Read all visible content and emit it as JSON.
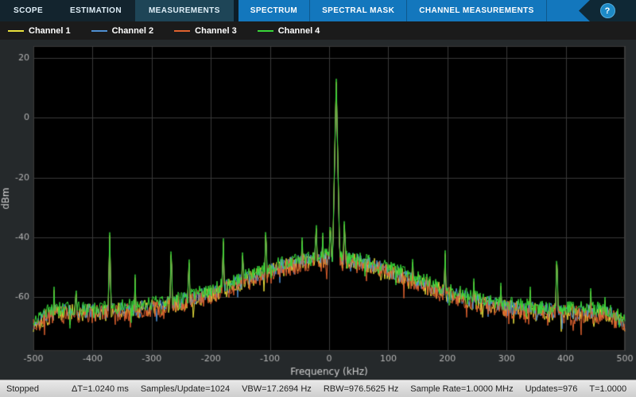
{
  "accent_color": "#1377bd",
  "toolbar": {
    "tabs": [
      {
        "label": "SCOPE"
      },
      {
        "label": "ESTIMATION"
      },
      {
        "label": "MEASUREMENTS"
      }
    ],
    "context_tabs": [
      {
        "label": "SPECTRUM"
      },
      {
        "label": "SPECTRAL MASK"
      },
      {
        "label": "CHANNEL MEASUREMENTS"
      }
    ],
    "help_label": "?"
  },
  "legend": {
    "items": [
      {
        "label": "Channel 1",
        "color": "#e9e13c"
      },
      {
        "label": "Channel 2",
        "color": "#4e8fd2"
      },
      {
        "label": "Channel 3",
        "color": "#e0622f"
      },
      {
        "label": "Channel 4",
        "color": "#39d839"
      }
    ]
  },
  "status": {
    "items": [
      "Stopped",
      "ΔT=1.0240 ms",
      "Samples/Update=1024",
      "VBW=17.2694 Hz",
      "RBW=976.5625 Hz",
      "Sample Rate=1.0000 MHz",
      "Updates=976",
      "T=1.0000"
    ]
  },
  "icons": {
    "grip": "⋮"
  },
  "chart_data": {
    "type": "line",
    "title": "",
    "xlabel": "Frequency (kHz)",
    "ylabel": "dBm",
    "xlim": [
      -500,
      500
    ],
    "ylim": [
      -78,
      24
    ],
    "xticks": [
      -500,
      -400,
      -300,
      -200,
      -100,
      0,
      100,
      200,
      300,
      400,
      500
    ],
    "yticks": [
      20,
      0,
      -20,
      -40,
      -60
    ],
    "grid": true,
    "legend_position": "top-left",
    "background": "#000000",
    "outer_background": "#25292b",
    "grid_color": "#3a3a3a",
    "tick_color": "#b5b5b5",
    "label_color": "#d0d0d0",
    "noise": {
      "floor_dbm": -64,
      "hump_db": 18,
      "hump_sigma_khz": 200,
      "edge_start_khz": 455,
      "edge_drop_db": 4,
      "peak_slope_db_per_khz": 10
    },
    "peaks": [
      [
        -465,
        -56
      ],
      [
        -428,
        -52
      ],
      [
        -371,
        -38
      ],
      [
        -328,
        -52
      ],
      [
        -298,
        -56
      ],
      [
        -267,
        -40
      ],
      [
        -237,
        -43
      ],
      [
        -205,
        -54
      ],
      [
        -179,
        -38
      ],
      [
        -146,
        -40
      ],
      [
        -107,
        -33
      ],
      [
        -80,
        -44
      ],
      [
        -60,
        -50
      ],
      [
        -46,
        -37
      ],
      [
        -22,
        -31
      ],
      [
        -11,
        -36
      ],
      [
        2,
        -30
      ],
      [
        12,
        14
      ],
      [
        26,
        -30
      ],
      [
        49,
        -41
      ],
      [
        80,
        -45
      ],
      [
        108,
        -44
      ],
      [
        141,
        -46
      ],
      [
        165,
        -49
      ],
      [
        196,
        -42
      ],
      [
        222,
        -54
      ],
      [
        245,
        -50
      ],
      [
        290,
        -52
      ],
      [
        340,
        -56
      ],
      [
        385,
        -42
      ],
      [
        442,
        -55
      ],
      [
        466,
        -56
      ]
    ],
    "series": [
      {
        "name": "Channel 1",
        "color": "#e9e13c",
        "seed": 101,
        "offset_db": -1.5,
        "jitter_db": 3.0,
        "peak_offset_db": -1.5
      },
      {
        "name": "Channel 2",
        "color": "#4e8fd2",
        "seed": 202,
        "offset_db": -1.0,
        "jitter_db": 2.5,
        "peak_offset_db": -2.0
      },
      {
        "name": "Channel 3",
        "color": "#e0622f",
        "seed": 303,
        "offset_db": -2.0,
        "jitter_db": 3.0,
        "peak_offset_db": -1.0
      },
      {
        "name": "Channel 4",
        "color": "#39d839",
        "seed": 404,
        "offset_db": 0.0,
        "jitter_db": 2.4,
        "peak_offset_db": 0.0
      }
    ]
  }
}
